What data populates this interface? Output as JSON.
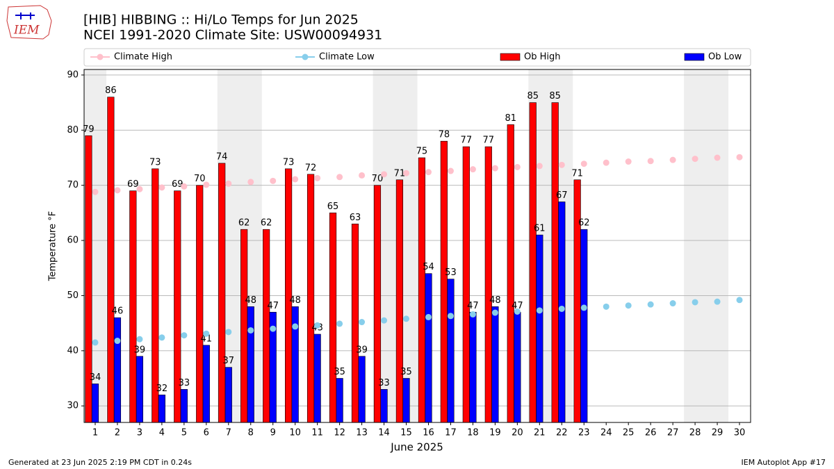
{
  "logo": "IEM",
  "footer_left": "Generated at 23 Jun 2025 2:19 PM CDT in 0.24s",
  "footer_right": "IEM Autoplot App #17",
  "chart_data": {
    "type": "bar",
    "title": "[HIB] HIBBING :: Hi/Lo Temps for Jun 2025",
    "subtitle": "NCEI 1991-2020 Climate Site: USW00094931",
    "xlabel": "June 2025",
    "ylabel": "Temperature °F",
    "x": [
      1,
      2,
      3,
      4,
      5,
      6,
      7,
      8,
      9,
      10,
      11,
      12,
      13,
      14,
      15,
      16,
      17,
      18,
      19,
      20,
      21,
      22,
      23,
      24,
      25,
      26,
      27,
      28,
      29,
      30
    ],
    "xlim": [
      0.5,
      30.5
    ],
    "xticks": [
      1,
      2,
      3,
      4,
      5,
      6,
      7,
      8,
      9,
      10,
      11,
      12,
      13,
      14,
      15,
      16,
      17,
      18,
      19,
      20,
      21,
      22,
      23,
      24,
      25,
      26,
      27,
      28,
      29,
      30
    ],
    "ylim": [
      27,
      91
    ],
    "yticks": [
      30,
      40,
      50,
      60,
      70,
      80,
      90
    ],
    "grid": true,
    "shaded_spans": [
      [
        0.5,
        1.5
      ],
      [
        6.5,
        8.5
      ],
      [
        13.5,
        15.5
      ],
      [
        20.5,
        22.5
      ],
      [
        27.5,
        29.5
      ]
    ],
    "series": [
      {
        "name": "Climate High",
        "kind": "line",
        "color": "#ffc0cb",
        "values": [
          68.8,
          69.1,
          69.3,
          69.6,
          69.8,
          70.1,
          70.3,
          70.6,
          70.8,
          71.1,
          71.3,
          71.5,
          71.8,
          72.0,
          72.2,
          72.4,
          72.6,
          72.9,
          73.1,
          73.3,
          73.5,
          73.7,
          73.9,
          74.1,
          74.3,
          74.4,
          74.6,
          74.8,
          75.0,
          75.1
        ]
      },
      {
        "name": "Climate Low",
        "kind": "line",
        "color": "#87ceeb",
        "values": [
          41.5,
          41.8,
          42.1,
          42.4,
          42.8,
          43.1,
          43.4,
          43.7,
          44.0,
          44.4,
          44.6,
          44.9,
          45.2,
          45.5,
          45.8,
          46.1,
          46.3,
          46.6,
          46.9,
          47.1,
          47.3,
          47.6,
          47.8,
          48.0,
          48.2,
          48.4,
          48.6,
          48.8,
          48.9,
          49.2
        ]
      },
      {
        "name": "Ob High",
        "kind": "bar",
        "color": "#ff0000",
        "values": [
          79,
          86,
          69,
          73,
          69,
          70,
          74,
          62,
          62,
          73,
          72,
          65,
          63,
          70,
          71,
          75,
          78,
          77,
          77,
          81,
          85,
          85,
          71,
          null,
          null,
          null,
          null,
          null,
          null,
          null
        ]
      },
      {
        "name": "Ob Low",
        "kind": "bar",
        "color": "#0000ff",
        "values": [
          34,
          46,
          39,
          32,
          33,
          41,
          37,
          48,
          47,
          48,
          43,
          35,
          39,
          33,
          35,
          54,
          53,
          47,
          48,
          47,
          61,
          67,
          62,
          null,
          null,
          null,
          null,
          null,
          null,
          null
        ]
      }
    ]
  }
}
